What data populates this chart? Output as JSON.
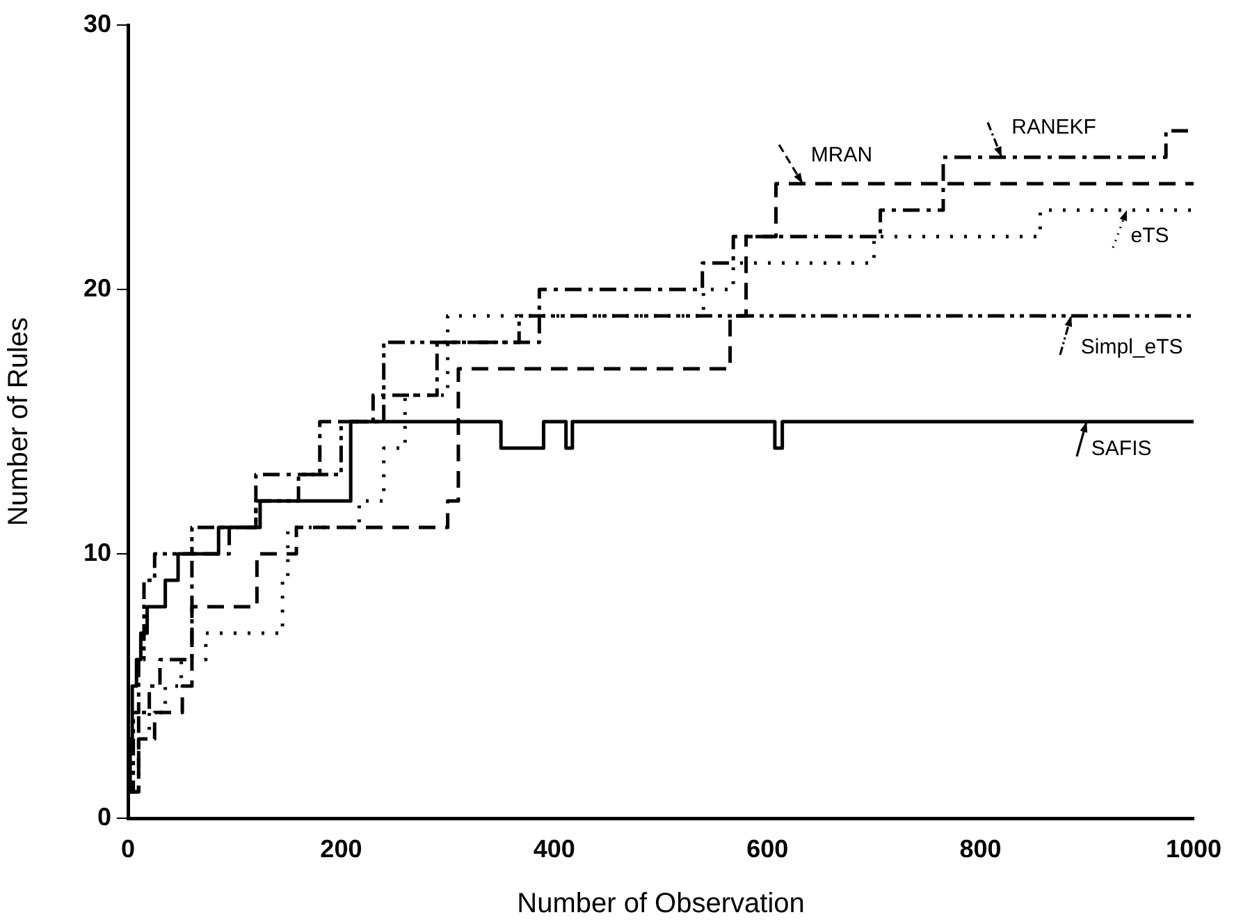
{
  "chart_data": {
    "type": "step",
    "xlabel": "Number of Observation",
    "ylabel": "Number of Rules",
    "xlim": [
      0,
      1000
    ],
    "xticks": [
      0,
      200,
      400,
      600,
      800,
      1000
    ],
    "ylim": [
      0,
      30
    ],
    "yticks": [
      0,
      10,
      20,
      30
    ],
    "grid": false,
    "legend": "right",
    "marker": "none",
    "series": [
      {
        "name": "SAFIS",
        "color": "#000000",
        "line_style": "solid",
        "x": [
          0,
          2,
          4,
          8,
          12,
          18,
          35,
          47,
          85,
          124,
          209,
          350,
          390,
          411,
          417,
          607,
          614,
          1000
        ],
        "values": [
          1,
          3,
          5,
          6,
          7,
          8,
          9,
          10,
          11,
          12,
          15,
          14,
          15,
          14,
          15,
          14,
          15,
          15
        ]
      },
      {
        "name": "MRAN",
        "color": "#000000",
        "line_style": "dashed",
        "x": [
          0,
          10,
          25,
          51,
          60,
          121,
          158,
          300,
          310,
          565,
          580,
          608,
          1000
        ],
        "values": [
          1,
          3,
          4,
          5,
          8,
          10,
          11,
          12,
          17,
          19,
          22,
          24,
          24
        ]
      },
      {
        "name": "RANEKF",
        "color": "#000000",
        "line_style": "dashdot",
        "x": [
          0,
          10,
          20,
          30,
          60,
          95,
          120,
          180,
          230,
          290,
          386,
          539,
          568,
          706,
          765,
          974,
          1000
        ],
        "values": [
          1,
          4,
          5,
          6,
          10,
          11,
          13,
          15,
          16,
          18,
          20,
          21,
          22,
          23,
          25,
          26,
          26
        ]
      },
      {
        "name": "eTS",
        "color": "#000000",
        "line_style": "dotted",
        "x": [
          0,
          10,
          20,
          35,
          50,
          73,
          145,
          150,
          217,
          240,
          260,
          300,
          540,
          568,
          700,
          856,
          1000
        ],
        "values": [
          1,
          3,
          4,
          5,
          6,
          7,
          9,
          11,
          12,
          14,
          16,
          19,
          20,
          21,
          22,
          23,
          23
        ]
      },
      {
        "name": "Simpl_eTS",
        "color": "#000000",
        "line_style": "dashdotdot",
        "x": [
          0,
          5,
          10,
          15,
          25,
          60,
          120,
          160,
          200,
          240,
          367,
          1000
        ],
        "values": [
          1,
          4,
          6,
          9,
          10,
          11,
          12,
          13,
          15,
          18,
          19,
          19
        ]
      }
    ]
  }
}
